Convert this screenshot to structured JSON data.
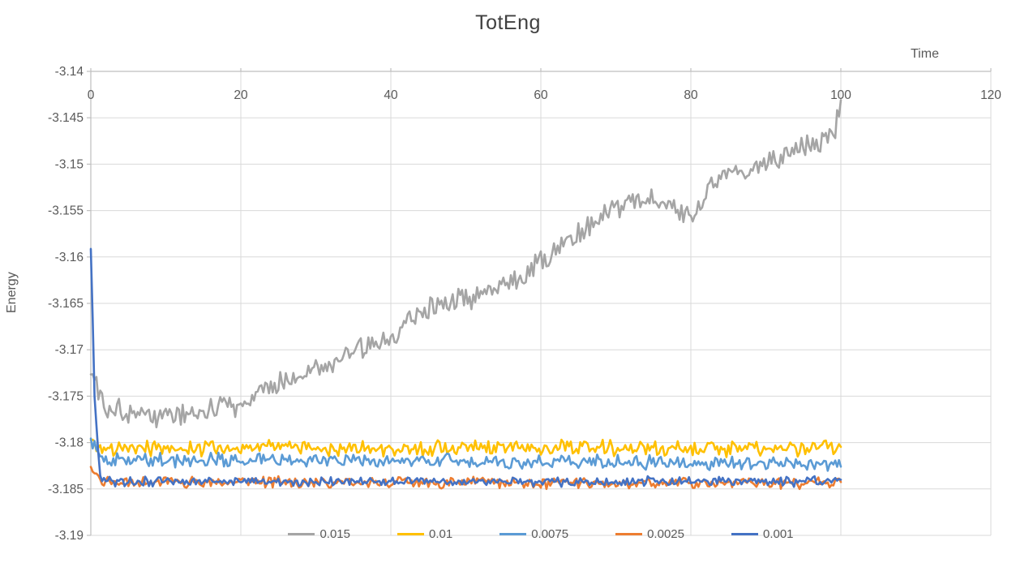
{
  "chart_data": {
    "type": "line",
    "title": "TotEng",
    "xlabel": "Time",
    "ylabel": "Energy",
    "xlim": [
      0,
      120
    ],
    "ylim": [
      -3.19,
      -3.14
    ],
    "x_ticks": [
      0,
      20,
      40,
      60,
      80,
      100,
      120
    ],
    "y_ticks": [
      -3.14,
      -3.145,
      -3.15,
      -3.155,
      -3.16,
      -3.165,
      -3.17,
      -3.175,
      -3.18,
      -3.185,
      -3.19
    ],
    "grid": true,
    "legend_position": "bottom",
    "x_data_range": [
      0,
      100
    ],
    "sample_step": 0.25,
    "colors": {
      "grid": "#D9D9D9",
      "axis": "#BFBFBF",
      "text": "#595959",
      "title": "#404040"
    },
    "series": [
      {
        "name": "0.015",
        "color": "#A5A5A5",
        "noise": 0.0016,
        "trend": [
          [
            0,
            -3.1725
          ],
          [
            2,
            -3.176
          ],
          [
            6,
            -3.1768
          ],
          [
            10,
            -3.1772
          ],
          [
            14,
            -3.1768
          ],
          [
            18,
            -3.1762
          ],
          [
            20,
            -3.1756
          ],
          [
            24,
            -3.1742
          ],
          [
            28,
            -3.1726
          ],
          [
            32,
            -3.1714
          ],
          [
            36,
            -3.17
          ],
          [
            40,
            -3.1686
          ],
          [
            43,
            -3.1662
          ],
          [
            46,
            -3.165
          ],
          [
            50,
            -3.1644
          ],
          [
            54,
            -3.1634
          ],
          [
            58,
            -3.1616
          ],
          [
            62,
            -3.1592
          ],
          [
            65,
            -3.1572
          ],
          [
            68,
            -3.1556
          ],
          [
            71,
            -3.1544
          ],
          [
            74,
            -3.1536
          ],
          [
            77,
            -3.1544
          ],
          [
            79,
            -3.156
          ],
          [
            81,
            -3.1548
          ],
          [
            83,
            -3.152
          ],
          [
            85,
            -3.1506
          ],
          [
            88,
            -3.151
          ],
          [
            90,
            -3.1498
          ],
          [
            93,
            -3.1492
          ],
          [
            95,
            -3.1482
          ],
          [
            97,
            -3.1478
          ],
          [
            99,
            -3.1468
          ],
          [
            100,
            -3.1438
          ]
        ]
      },
      {
        "name": "0.01",
        "color": "#FFC000",
        "noise": 0.001,
        "trend": [
          [
            0,
            -3.1796
          ],
          [
            1,
            -3.1806
          ],
          [
            100,
            -3.1806
          ]
        ]
      },
      {
        "name": "0.0075",
        "color": "#5B9BD5",
        "noise": 0.0009,
        "trend": [
          [
            0,
            -3.18
          ],
          [
            1.5,
            -3.1818
          ],
          [
            100,
            -3.1822
          ]
        ]
      },
      {
        "name": "0.0025",
        "color": "#ED7D31",
        "noise": 0.0007,
        "trend": [
          [
            0,
            -3.183
          ],
          [
            1.5,
            -3.1842
          ],
          [
            100,
            -3.1844
          ]
        ]
      },
      {
        "name": "0.001",
        "color": "#4472C4",
        "noise": 0.0006,
        "trend": [
          [
            0,
            -3.1586
          ],
          [
            0.5,
            -3.175
          ],
          [
            1.2,
            -3.1836
          ],
          [
            3,
            -3.1842
          ],
          [
            100,
            -3.1842
          ]
        ]
      }
    ]
  }
}
